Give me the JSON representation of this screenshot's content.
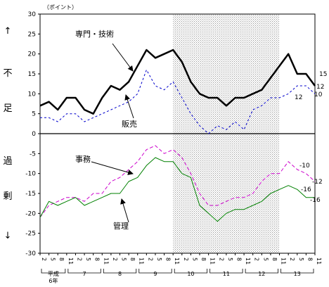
{
  "chart_data": {
    "type": "line",
    "y_unit": "（ポイント）",
    "ylim": [
      -30,
      30
    ],
    "y_ticks": [
      30,
      25,
      20,
      15,
      10,
      5,
      0,
      -5,
      -10,
      -15,
      -20,
      -25,
      -30
    ],
    "y_side_labels": [
      "↑",
      "不",
      "足",
      "過",
      "剰",
      "↓"
    ],
    "quarters": [
      "2",
      "5",
      "8",
      "11",
      "2",
      "5",
      "8",
      "11",
      "2",
      "5",
      "8",
      "11",
      "2",
      "5",
      "8",
      "11",
      "2",
      "5",
      "8",
      "11",
      "2",
      "5",
      "8",
      "11",
      "2",
      "5",
      "8",
      "11",
      "2",
      "5",
      "8",
      "11",
      "2",
      "5",
      "8",
      "11",
      "2",
      "5",
      "8",
      "11",
      "2",
      "5",
      "8",
      "11",
      "2",
      "5",
      "8",
      "11",
      "2",
      "5",
      "8",
      "11",
      "2",
      "5",
      "8",
      "11",
      "2",
      "5",
      "8",
      "11",
      "2",
      "5",
      "8",
      "11",
      "2",
      "5",
      "8",
      "11",
      "2",
      "5",
      "8",
      "11",
      "2",
      "5",
      "8",
      "11"
    ],
    "quarter_labels": [
      "2",
      "5",
      "8",
      "11",
      "2",
      "5",
      "8",
      "11",
      "2",
      "5",
      "8",
      "11",
      "2",
      "5",
      "8",
      "11",
      "2",
      "5",
      "8",
      "11",
      "2",
      "5",
      "8",
      "11",
      "2",
      "5",
      "8",
      "11",
      "2",
      "5",
      "8",
      "11",
      "2",
      "5",
      "8",
      "11",
      "2",
      "5",
      "8",
      "11"
    ],
    "year_labels": [
      {
        "text": "平成",
        "text2": "6年"
      },
      {
        "text": "7"
      },
      {
        "text": "8"
      },
      {
        "text": "9"
      },
      {
        "text": "10"
      },
      {
        "text": "11"
      },
      {
        "text": "12"
      },
      {
        "text": "13"
      }
    ],
    "shaded_range": [
      15,
      27
    ],
    "series": [
      {
        "name": "専門・技術",
        "end_label": "15",
        "color": "#000000",
        "dash": "none",
        "width": 2.5,
        "values": [
          7,
          8,
          6,
          9,
          9,
          6,
          5,
          9,
          12,
          11,
          13,
          17,
          21,
          19,
          20,
          21,
          18,
          13,
          10,
          9,
          9,
          7,
          9,
          9,
          10,
          11,
          14,
          17,
          20,
          15,
          15,
          12
        ]
      },
      {
        "name": "販売",
        "end_label": "12",
        "color": "#0000cc",
        "dash": "3,3",
        "width": 1,
        "values": [
          4,
          4,
          3,
          5,
          5,
          3,
          4,
          5,
          6,
          7,
          8,
          10,
          16,
          12,
          11,
          13,
          9,
          5,
          2,
          0,
          2,
          1,
          3,
          1,
          6,
          7,
          9,
          9,
          10,
          12,
          12,
          10
        ]
      },
      {
        "name": "事務",
        "end_label": "-10",
        "color": "#cc00cc",
        "dash": "5,3",
        "width": 1,
        "values": [
          -21,
          -18,
          -17,
          -16,
          -16,
          -17,
          -15,
          -15,
          -12,
          -11,
          -9,
          -7,
          -4,
          -3,
          -5,
          -4,
          -6,
          -10,
          -15,
          -18,
          -18,
          -17,
          -16,
          -16,
          -15,
          -12,
          -10,
          -10,
          -7,
          -9,
          -10,
          -12
        ]
      },
      {
        "name": "管理",
        "end_label": "-16",
        "color": "#008000",
        "dash": "none",
        "width": 1,
        "values": [
          -21,
          -17,
          -18,
          -17,
          -16,
          -18,
          -17,
          -16,
          -15,
          -15,
          -12,
          -11,
          -8,
          -6,
          -7,
          -7,
          -10,
          -11,
          -18,
          -20,
          -22,
          -20,
          -19,
          -19,
          -18,
          -17,
          -15,
          -14,
          -13,
          -14,
          -16,
          -16
        ]
      }
    ],
    "end_labels_right": [
      {
        "text": "15",
        "series": 0
      },
      {
        "text": "12",
        "series": 0
      },
      {
        "text": "12",
        "series": 1
      },
      {
        "text": "10",
        "series": 1
      },
      {
        "text": "-10",
        "series": 2
      },
      {
        "text": "-12",
        "series": 2
      },
      {
        "text": "-16",
        "series": 3
      },
      {
        "text": "-16",
        "series": 3
      }
    ],
    "annotations": [
      {
        "text": "専門・技術",
        "series": 0
      },
      {
        "text": "販売",
        "series": 1
      },
      {
        "text": "事務",
        "series": 2
      },
      {
        "text": "管理",
        "series": 3
      }
    ]
  }
}
